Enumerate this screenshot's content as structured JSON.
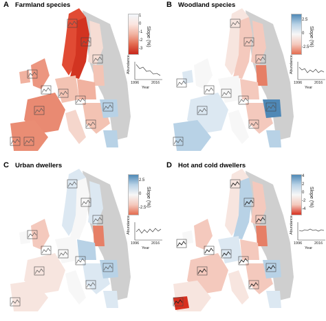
{
  "panels": [
    {
      "label": "A",
      "title": "Farmland species",
      "legend": {
        "ticks": [
          "1",
          "0",
          "-1",
          "-2",
          "-3"
        ],
        "title": "Slope (%)",
        "colors": [
          "#f2f7fb",
          "#fbe5df",
          "#f1b2a0",
          "#e36a4f",
          "#c8261a"
        ]
      }
    },
    {
      "label": "B",
      "title": "Woodland species",
      "legend": {
        "ticks": [
          "2.5",
          "0",
          "-2.5"
        ],
        "title": "Slope (%)",
        "colors": [
          "#4f88b6",
          "#b8d2e6",
          "#f7f7f7",
          "#f4c9bd",
          "#e46c4f"
        ]
      }
    },
    {
      "label": "C",
      "title": "Urban dwellers",
      "legend": {
        "ticks": [
          "2.5",
          "0",
          "-2.5"
        ],
        "title": "Slope (%)",
        "colors": [
          "#4f88b6",
          "#b8d2e6",
          "#f7f7f7",
          "#f4c9bd",
          "#e46c4f"
        ]
      }
    },
    {
      "label": "D",
      "title": "Hot and cold dwellers",
      "legend": {
        "ticks": [
          "4",
          "2",
          "0",
          "-2",
          "-4"
        ],
        "title": "Slope (%)",
        "colors": [
          "#4f88b6",
          "#b8d2e6",
          "#f7f7f7",
          "#f4c9bd",
          "#d7301f"
        ]
      }
    }
  ],
  "inset_timeseries": {
    "ylabel": "Abundance",
    "xlabel": "Year",
    "x_start": "1996",
    "x_end": "2016"
  },
  "colors": {
    "no_data": "#cfcfcf",
    "border": "#ffffff",
    "line": "#555555"
  }
}
